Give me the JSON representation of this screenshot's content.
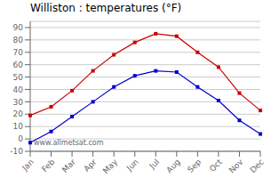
{
  "chart_data": {
    "type": "line",
    "title": "Williston : temperatures (°F)",
    "categories": [
      "Jan",
      "Feb",
      "Mar",
      "Apr",
      "May",
      "Jun",
      "Jul",
      "Aug",
      "Sep",
      "Oct",
      "Nov",
      "Dec"
    ],
    "series": [
      {
        "color": "#cc0000",
        "marker": "square",
        "values": [
          19,
          26,
          39,
          55,
          68,
          78,
          85,
          83,
          70,
          58,
          37,
          23
        ]
      },
      {
        "color": "#0000cc",
        "marker": "square",
        "values": [
          -3,
          6,
          18,
          30,
          42,
          51,
          55,
          54,
          42,
          31,
          15,
          4
        ]
      }
    ],
    "ylim": [
      -10,
      95
    ],
    "yticks": [
      -10,
      0,
      10,
      20,
      30,
      40,
      50,
      60,
      70,
      80,
      90
    ],
    "grid": "y",
    "annotations": [
      "www.allmetsat.com"
    ]
  }
}
